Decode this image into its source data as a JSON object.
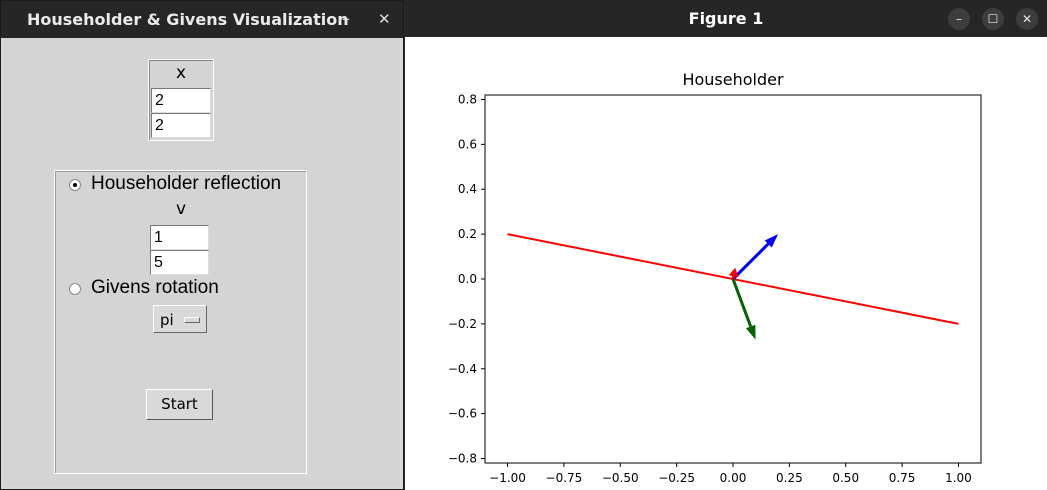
{
  "control_window": {
    "title": "Householder & Givens Visualization",
    "minimize_symbol": "–",
    "close_symbol": "✕",
    "x_label": "x",
    "x_values": [
      "2",
      "2"
    ],
    "householder_label": "Householder reflection",
    "householder_selected": true,
    "v_label": "v",
    "v_values": [
      "1",
      "5"
    ],
    "givens_label": "Givens rotation",
    "givens_selected": false,
    "angle_option": "pi",
    "start_label": "Start"
  },
  "figure_window": {
    "title": "Figure 1",
    "controls": {
      "minimize": "–",
      "maximize": "☐",
      "close": "✕"
    }
  },
  "chart_data": {
    "type": "line",
    "title": "Householder",
    "xlabel": "",
    "ylabel": "",
    "xlim": [
      -1.1,
      1.1
    ],
    "ylim": [
      -0.82,
      0.82
    ],
    "xticks": [
      -1.0,
      -0.75,
      -0.5,
      -0.25,
      0.0,
      0.25,
      0.5,
      0.75,
      1.0
    ],
    "yticks": [
      -0.8,
      -0.6,
      -0.4,
      -0.2,
      0.0,
      0.2,
      0.4,
      0.6,
      0.8
    ],
    "xtick_labels": [
      "−1.00",
      "−0.75",
      "−0.50",
      "−0.25",
      "0.00",
      "0.25",
      "0.50",
      "0.75",
      "1.00"
    ],
    "ytick_labels": [
      "−0.8",
      "−0.6",
      "−0.4",
      "−0.2",
      "0.0",
      "0.2",
      "0.4",
      "0.6",
      "0.8"
    ],
    "grid": false,
    "line": {
      "name": "reflection line",
      "color": "#ff0000",
      "x": [
        -1.0,
        1.0
      ],
      "y": [
        0.2,
        -0.2
      ]
    },
    "arrows": [
      {
        "name": "x-vector",
        "color": "#0000ff",
        "x0": 0,
        "y0": 0,
        "dx": 0.2,
        "dy": 0.2
      },
      {
        "name": "v-vector",
        "color": "#ff0000",
        "x0": 0,
        "y0": 0,
        "dx": 0.01,
        "dy": 0.05
      },
      {
        "name": "reflected-vector",
        "color": "#006400",
        "x0": 0,
        "y0": 0,
        "dx": 0.1,
        "dy": -0.27
      }
    ]
  }
}
